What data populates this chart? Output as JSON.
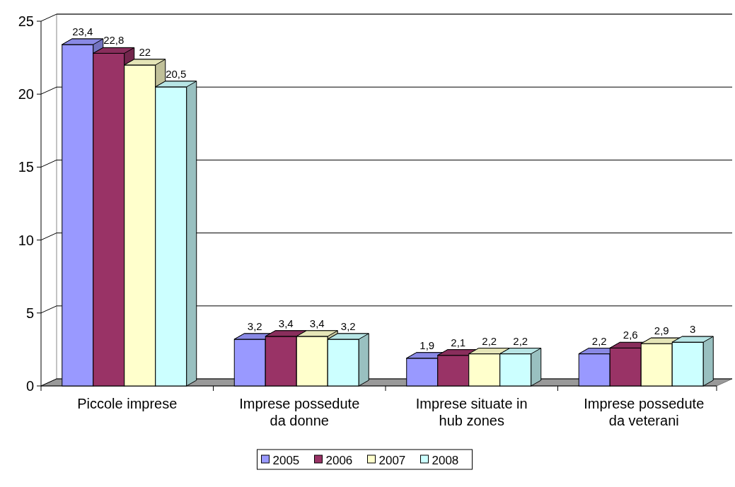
{
  "chart_data": {
    "type": "bar",
    "categories": [
      "Piccole imprese",
      "Imprese possedute da donne",
      "Imprese situate in hub zones",
      "Imprese possedute da veterani"
    ],
    "series": [
      {
        "name": "2005",
        "color": "#9999ff",
        "values": [
          23.4,
          3.2,
          1.9,
          2.2
        ],
        "value_labels": [
          "23,4",
          "3,2",
          "1,9",
          "2,2"
        ]
      },
      {
        "name": "2006",
        "color": "#993366",
        "values": [
          22.8,
          3.4,
          2.1,
          2.6
        ],
        "value_labels": [
          "22,8",
          "3,4",
          "2,1",
          "2,6"
        ]
      },
      {
        "name": "2007",
        "color": "#ffffcc",
        "values": [
          22,
          3.4,
          2.2,
          2.9
        ],
        "value_labels": [
          "22",
          "3,4",
          "2,2",
          "2,9"
        ]
      },
      {
        "name": "2008",
        "color": "#ccffff",
        "values": [
          20.5,
          3.2,
          2.2,
          3
        ],
        "value_labels": [
          "20,5",
          "3,2",
          "2,2",
          "3"
        ]
      }
    ],
    "ylim": [
      0,
      25
    ],
    "yticks": [
      0,
      5,
      10,
      15,
      20,
      25
    ],
    "grid": "y",
    "legend": "bottom"
  }
}
